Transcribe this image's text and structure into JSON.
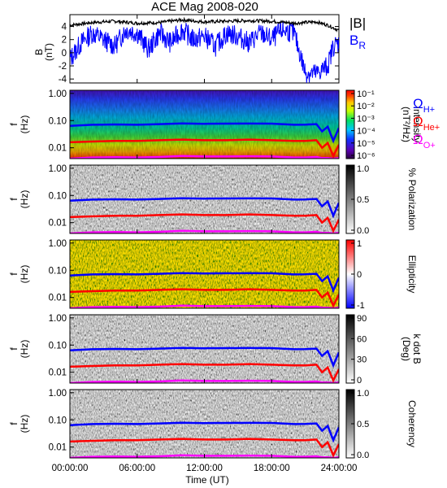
{
  "chart_data": {
    "title": "ACE Mag 2008-020",
    "x_axis": {
      "label": "Time (UT)",
      "tick_labels": [
        "00:00:00",
        "06:00:00",
        "12:00:00",
        "18:00:00",
        "24:00:00"
      ],
      "tick_hours": [
        0,
        6,
        12,
        18,
        24
      ],
      "range_hours": [
        0,
        24
      ]
    },
    "freq_ticks": [
      "1.00",
      "0.10",
      "0.01"
    ],
    "freq_tick_values": [
      1.0,
      0.1,
      0.01
    ],
    "freq_range": [
      0.004,
      1.3
    ],
    "colors": {
      "B_total": "#000000",
      "B_R": "#0000ff",
      "H_plus": "#0000ff",
      "He_plus": "#ff0000",
      "O_plus": "#ff00ff"
    },
    "top_panel": {
      "type": "line",
      "ylabel": "B\n(nT)",
      "yticks": [
        "4",
        "2",
        "0",
        "-2",
        "-4"
      ],
      "ytick_values": [
        4,
        2,
        0,
        -2,
        -4
      ],
      "ylim": [
        -4.6,
        5.8
      ],
      "legend": [
        "|B|",
        "BR"
      ],
      "series": [
        {
          "name": "|B|",
          "x_hours": [
            0,
            2,
            4,
            6,
            8,
            10,
            12,
            14,
            16,
            18,
            20,
            22,
            23,
            24
          ],
          "values": [
            4.2,
            4.6,
            4.8,
            4.5,
            4.6,
            5.0,
            4.7,
            4.8,
            4.9,
            4.8,
            4.5,
            4.7,
            4.2,
            3.4
          ]
        },
        {
          "name": "BR",
          "x_hours": [
            0,
            1,
            2,
            3,
            4,
            5,
            6,
            7,
            8,
            9,
            10,
            11,
            12,
            13,
            14,
            15,
            16,
            17,
            18,
            19,
            20,
            20.5,
            21,
            22,
            23,
            23.5,
            24
          ],
          "values": [
            -1.0,
            1.5,
            3.0,
            2.0,
            1.0,
            3.5,
            3.0,
            0.5,
            3.0,
            1.5,
            3.5,
            2.0,
            2.5,
            1.0,
            3.0,
            2.5,
            1.5,
            3.0,
            2.0,
            3.5,
            3.0,
            0.0,
            -3.0,
            -3.2,
            -2.0,
            1.0,
            1.5
          ]
        }
      ]
    },
    "spectrogram_panels": [
      {
        "kind": "Intensity",
        "colorbar_label": "Intensity\n(nT²/Hz)",
        "colorbar_ticks": [
          "10⁻¹",
          "10⁻²",
          "10⁻³",
          "10⁻⁴",
          "10⁻⁵",
          "10⁻⁶"
        ],
        "colormap": "rainbow",
        "legend": [
          "ΩH+",
          "ΩHe+",
          "ΩO+"
        ]
      },
      {
        "kind": "Polarization",
        "colorbar_label": "% Polarization",
        "colorbar_ticks": [
          "1.0",
          "0.5",
          "0.0"
        ],
        "colormap": "gray"
      },
      {
        "kind": "Ellipticity",
        "colorbar_label": "Ellipticity",
        "colorbar_ticks": [
          "1",
          "0",
          "-1"
        ],
        "colormap": "bwr"
      },
      {
        "kind": "k dot B",
        "colorbar_label": "k dot B\n(Deg)",
        "colorbar_ticks": [
          "90",
          "60",
          "30",
          "0"
        ],
        "colormap": "gray"
      },
      {
        "kind": "Coherency",
        "colorbar_label": "Coherency",
        "colorbar_ticks": [
          "1.0",
          "0.5",
          "0.0"
        ],
        "colormap": "gray"
      }
    ],
    "gyrofrequency_lines": {
      "x_hours": [
        0,
        2,
        4,
        6,
        8,
        10,
        12,
        14,
        16,
        18,
        20,
        21,
        22,
        22.5,
        23,
        23.5,
        24
      ],
      "H_plus_Hz": [
        0.064,
        0.07,
        0.072,
        0.07,
        0.074,
        0.079,
        0.076,
        0.077,
        0.078,
        0.077,
        0.07,
        0.071,
        0.074,
        0.04,
        0.06,
        0.018,
        0.054
      ],
      "He_plus_Hz": [
        0.016,
        0.017,
        0.018,
        0.018,
        0.019,
        0.02,
        0.019,
        0.019,
        0.02,
        0.019,
        0.018,
        0.018,
        0.019,
        0.01,
        0.015,
        0.005,
        0.013
      ],
      "O_plus_Hz": [
        0.004,
        0.0044,
        0.0045,
        0.0044,
        0.0046,
        0.005,
        0.0048,
        0.0048,
        0.0049,
        0.0048,
        0.0044,
        0.0044,
        0.0046,
        0.0042,
        0.0042,
        0.004,
        0.0042
      ]
    }
  }
}
